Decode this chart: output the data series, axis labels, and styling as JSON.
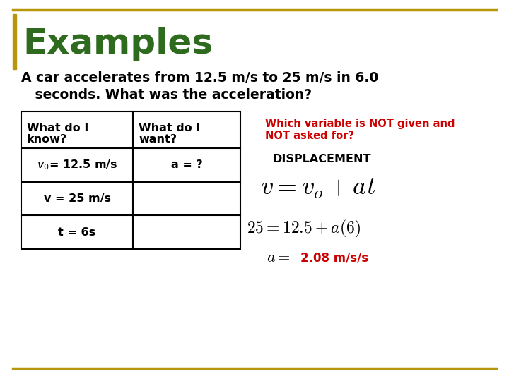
{
  "title": "Examples",
  "title_color": "#2E6B1E",
  "problem_line1": "A car accelerates from 12.5 m/s to 25 m/s in 6.0",
  "problem_line2": "   seconds. What was the acceleration?",
  "bg_color": "#FFFFFF",
  "border_color": "#B8960C",
  "red_color": "#CC0000",
  "black_color": "#000000",
  "hdr_col1_l1": "What do I",
  "hdr_col1_l2": "know?",
  "hdr_col2_l1": "What do I",
  "hdr_col2_l2": "want?",
  "row1_col1": "$v_0$= 12.5 m/s",
  "row1_col2": "a = ?",
  "row2_col1": "v = 25 m/s",
  "row3_col1": "t = 6s",
  "red_line1": "Which variable is NOT given and",
  "red_line2": "NOT asked for?",
  "displacement": "DISPLACEMENT",
  "fig_w": 7.2,
  "fig_h": 5.4,
  "dpi": 100
}
